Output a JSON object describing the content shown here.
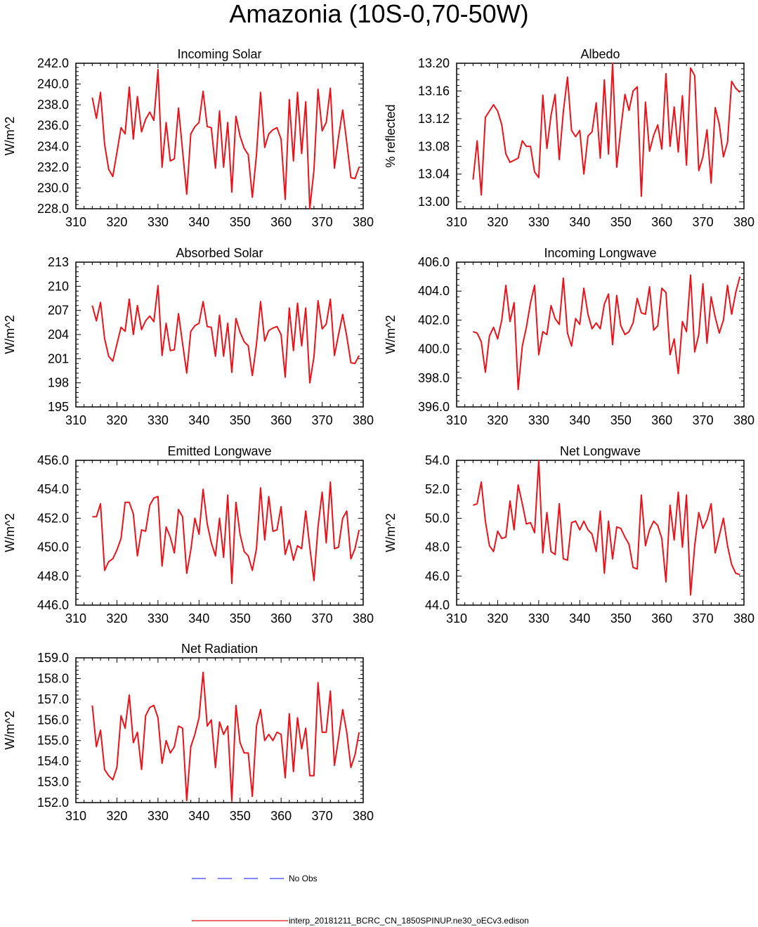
{
  "title": "Amazonia (10S-0,70-50W)",
  "legend": [
    {
      "label": "No Obs",
      "color": "#3f3fff",
      "dash": true
    },
    {
      "label": "interp_20181211_BCRC_CN_1850SPINUP.ne30_oECv3.edison",
      "color": "#e8131b",
      "dash": false
    }
  ],
  "line_color": "#e8131b",
  "chart_data": [
    {
      "type": "line",
      "title": "Incoming Solar",
      "ylabel": "W/m^2",
      "xlim": [
        310,
        380
      ],
      "ylim": [
        228,
        242
      ],
      "xticks": [
        "310",
        "320",
        "330",
        "340",
        "350",
        "360",
        "370",
        "380"
      ],
      "yticks": [
        "228.0",
        "230.0",
        "232.0",
        "234.0",
        "236.0",
        "238.0",
        "240.0",
        "242.0"
      ],
      "x": [
        314,
        315,
        316,
        317,
        318,
        319,
        320,
        321,
        322,
        323,
        324,
        325,
        326,
        327,
        328,
        329,
        330,
        331,
        332,
        333,
        334,
        335,
        336,
        337,
        338,
        339,
        340,
        341,
        342,
        343,
        344,
        345,
        346,
        347,
        348,
        349,
        350,
        351,
        352,
        353,
        354,
        355,
        356,
        357,
        358,
        359,
        360,
        361,
        362,
        363,
        364,
        365,
        366,
        367,
        368,
        369,
        370,
        371,
        372,
        373,
        374,
        375,
        376,
        377,
        378,
        379
      ],
      "y": [
        238.7,
        236.7,
        239.2,
        234.2,
        231.8,
        231.1,
        233.4,
        235.8,
        235.2,
        239.7,
        234.7,
        238.8,
        235.4,
        236.6,
        237.3,
        236.5,
        241.4,
        232.0,
        236.3,
        232.6,
        232.8,
        237.7,
        233.6,
        229.4,
        235.2,
        235.9,
        236.3,
        239.3,
        235.9,
        235.8,
        231.9,
        237.4,
        232.0,
        236.3,
        229.6,
        236.9,
        235.0,
        233.8,
        233.2,
        229.1,
        233.2,
        239.2,
        233.9,
        235.2,
        235.6,
        235.8,
        234.7,
        228.9,
        238.5,
        232.6,
        239.2,
        233.3,
        238.3,
        228.0,
        231.7,
        239.5,
        235.5,
        236.3,
        239.6,
        231.9,
        234.9,
        237.5,
        234.4,
        231.0,
        230.9,
        232.0
      ]
    },
    {
      "type": "line",
      "title": "Albedo",
      "ylabel": "% reflected",
      "xlim": [
        310,
        380
      ],
      "ylim": [
        12.99,
        13.2
      ],
      "xticks": [
        "310",
        "320",
        "330",
        "340",
        "350",
        "360",
        "370",
        "380"
      ],
      "yticks": [
        "13.00",
        "13.04",
        "13.08",
        "13.12",
        "13.16",
        "13.20"
      ],
      "x": [
        314,
        315,
        316,
        317,
        318,
        319,
        320,
        321,
        322,
        323,
        324,
        325,
        326,
        327,
        328,
        329,
        330,
        331,
        332,
        333,
        334,
        335,
        336,
        337,
        338,
        339,
        340,
        341,
        342,
        343,
        344,
        345,
        346,
        347,
        348,
        349,
        350,
        351,
        352,
        353,
        354,
        355,
        356,
        357,
        358,
        359,
        360,
        361,
        362,
        363,
        364,
        365,
        366,
        367,
        368,
        369,
        370,
        371,
        372,
        373,
        374,
        375,
        376,
        377,
        378,
        379
      ],
      "y": [
        13.032,
        13.088,
        13.01,
        13.122,
        13.131,
        13.14,
        13.131,
        13.111,
        13.069,
        13.057,
        13.06,
        13.063,
        13.088,
        13.08,
        13.08,
        13.043,
        13.035,
        13.154,
        13.077,
        13.125,
        13.155,
        13.061,
        13.13,
        13.18,
        13.103,
        13.094,
        13.103,
        13.04,
        13.095,
        13.101,
        13.143,
        13.063,
        13.176,
        13.069,
        13.2,
        13.05,
        13.105,
        13.155,
        13.132,
        13.16,
        13.166,
        13.008,
        13.144,
        13.073,
        13.096,
        13.111,
        13.076,
        13.185,
        13.08,
        13.137,
        13.072,
        13.153,
        13.053,
        13.193,
        13.182,
        13.045,
        13.065,
        13.104,
        13.027,
        13.136,
        13.112,
        13.065,
        13.086,
        13.174,
        13.164,
        13.158
      ]
    },
    {
      "type": "line",
      "title": "Absorbed Solar",
      "ylabel": "W/m^2",
      "xlim": [
        310,
        380
      ],
      "ylim": [
        195,
        213
      ],
      "xticks": [
        "310",
        "320",
        "330",
        "340",
        "350",
        "360",
        "370",
        "380"
      ],
      "yticks": [
        "195",
        "198",
        "201",
        "204",
        "207",
        "210",
        "213"
      ],
      "x": [
        314,
        315,
        316,
        317,
        318,
        319,
        320,
        321,
        322,
        323,
        324,
        325,
        326,
        327,
        328,
        329,
        330,
        331,
        332,
        333,
        334,
        335,
        336,
        337,
        338,
        339,
        340,
        341,
        342,
        343,
        344,
        345,
        346,
        347,
        348,
        349,
        350,
        351,
        352,
        353,
        354,
        355,
        356,
        357,
        358,
        359,
        360,
        361,
        362,
        363,
        364,
        365,
        366,
        367,
        368,
        369,
        370,
        371,
        372,
        373,
        374,
        375,
        376,
        377,
        378,
        379
      ],
      "y": [
        207.6,
        205.7,
        208.0,
        203.5,
        201.3,
        200.7,
        202.8,
        204.9,
        204.4,
        208.4,
        204.0,
        207.6,
        204.6,
        205.7,
        206.3,
        205.6,
        210.1,
        201.4,
        205.4,
        202.0,
        202.1,
        206.6,
        202.9,
        199.2,
        204.4,
        205.1,
        205.4,
        208.1,
        205.0,
        204.9,
        201.3,
        206.4,
        201.3,
        205.4,
        199.3,
        206.0,
        204.3,
        203.1,
        202.6,
        198.9,
        202.8,
        208.1,
        203.2,
        204.5,
        204.8,
        205.0,
        204.0,
        198.7,
        207.3,
        202.0,
        207.9,
        202.6,
        207.3,
        198.0,
        201.2,
        208.2,
        204.7,
        205.3,
        208.4,
        201.4,
        204.0,
        206.5,
        203.8,
        200.5,
        200.4,
        201.4
      ]
    },
    {
      "type": "line",
      "title": "Incoming Longwave",
      "ylabel": "W/m^2",
      "xlim": [
        310,
        380
      ],
      "ylim": [
        396,
        406
      ],
      "xticks": [
        "310",
        "320",
        "330",
        "340",
        "350",
        "360",
        "370",
        "380"
      ],
      "yticks": [
        "396.0",
        "398.0",
        "400.0",
        "402.0",
        "404.0",
        "406.0"
      ],
      "x": [
        314,
        315,
        316,
        317,
        318,
        319,
        320,
        321,
        322,
        323,
        324,
        325,
        326,
        327,
        328,
        329,
        330,
        331,
        332,
        333,
        334,
        335,
        336,
        337,
        338,
        339,
        340,
        341,
        342,
        343,
        344,
        345,
        346,
        347,
        348,
        349,
        350,
        351,
        352,
        353,
        354,
        355,
        356,
        357,
        358,
        359,
        360,
        361,
        362,
        363,
        364,
        365,
        366,
        367,
        368,
        369,
        370,
        371,
        372,
        373,
        374,
        375,
        376,
        377,
        378,
        379
      ],
      "y": [
        401.2,
        401.1,
        400.5,
        398.4,
        400.9,
        401.5,
        400.7,
        402.0,
        404.4,
        401.9,
        403.2,
        397.2,
        400.2,
        401.5,
        403.2,
        404.4,
        399.6,
        401.2,
        401.0,
        403.0,
        402.1,
        401.7,
        404.9,
        401.1,
        400.2,
        402.1,
        401.7,
        404.2,
        402.4,
        401.4,
        401.8,
        401.4,
        403.1,
        403.8,
        400.3,
        403.7,
        401.6,
        401.0,
        401.2,
        401.8,
        403.5,
        402.5,
        402.4,
        404.3,
        401.3,
        401.6,
        404.2,
        403.9,
        399.6,
        400.7,
        398.3,
        401.9,
        401.2,
        405.1,
        399.8,
        401.0,
        404.5,
        400.4,
        403.6,
        402.2,
        401.1,
        402.0,
        404.4,
        402.4,
        403.9,
        405.0
      ]
    },
    {
      "type": "line",
      "title": "Emitted Longwave",
      "ylabel": "W/m^2",
      "xlim": [
        310,
        380
      ],
      "ylim": [
        446,
        456
      ],
      "xticks": [
        "310",
        "320",
        "330",
        "340",
        "350",
        "360",
        "370",
        "380"
      ],
      "yticks": [
        "446.0",
        "448.0",
        "450.0",
        "452.0",
        "454.0",
        "456.0"
      ],
      "x": [
        314,
        315,
        316,
        317,
        318,
        319,
        320,
        321,
        322,
        323,
        324,
        325,
        326,
        327,
        328,
        329,
        330,
        331,
        332,
        333,
        334,
        335,
        336,
        337,
        338,
        339,
        340,
        341,
        342,
        343,
        344,
        345,
        346,
        347,
        348,
        349,
        350,
        351,
        352,
        353,
        354,
        355,
        356,
        357,
        358,
        359,
        360,
        361,
        362,
        363,
        364,
        365,
        366,
        367,
        368,
        369,
        370,
        371,
        372,
        373,
        374,
        375,
        376,
        377,
        378,
        379
      ],
      "y": [
        452.1,
        452.1,
        453.0,
        448.4,
        449.0,
        449.2,
        449.8,
        450.6,
        453.1,
        453.1,
        452.3,
        449.4,
        451.2,
        451.1,
        452.9,
        453.4,
        453.5,
        448.7,
        451.4,
        450.7,
        449.6,
        452.6,
        452.1,
        448.2,
        449.8,
        452.0,
        450.9,
        454.0,
        451.6,
        450.3,
        449.4,
        452.0,
        449.3,
        453.6,
        447.5,
        453.1,
        450.9,
        449.7,
        449.4,
        448.4,
        449.9,
        454.1,
        450.5,
        453.5,
        451.1,
        451.2,
        452.8,
        449.5,
        450.5,
        449.1,
        450.1,
        449.9,
        452.5,
        450.0,
        447.7,
        451.4,
        453.8,
        450.3,
        454.5,
        449.9,
        450.0,
        452.0,
        452.5,
        449.2,
        449.9,
        451.2
      ]
    },
    {
      "type": "line",
      "title": "Net Longwave",
      "ylabel": "W/m^2",
      "xlim": [
        310,
        380
      ],
      "ylim": [
        44,
        54
      ],
      "xticks": [
        "310",
        "320",
        "330",
        "340",
        "350",
        "360",
        "370",
        "380"
      ],
      "yticks": [
        "44.0",
        "46.0",
        "48.0",
        "50.0",
        "52.0",
        "54.0"
      ],
      "x": [
        314,
        315,
        316,
        317,
        318,
        319,
        320,
        321,
        322,
        323,
        324,
        325,
        326,
        327,
        328,
        329,
        330,
        331,
        332,
        333,
        334,
        335,
        336,
        337,
        338,
        339,
        340,
        341,
        342,
        343,
        344,
        345,
        346,
        347,
        348,
        349,
        350,
        351,
        352,
        353,
        354,
        355,
        356,
        357,
        358,
        359,
        360,
        361,
        362,
        363,
        364,
        365,
        366,
        367,
        368,
        369,
        370,
        371,
        372,
        373,
        374,
        375,
        376,
        377,
        378,
        379
      ],
      "y": [
        50.9,
        51.0,
        52.5,
        49.8,
        48.1,
        47.7,
        49.1,
        48.6,
        48.7,
        51.2,
        49.2,
        52.3,
        51.0,
        49.6,
        49.7,
        49.0,
        54.0,
        47.6,
        50.4,
        47.7,
        47.5,
        51.0,
        47.2,
        47.1,
        49.7,
        49.8,
        49.2,
        49.8,
        49.2,
        48.9,
        47.7,
        50.5,
        46.2,
        49.8,
        47.2,
        49.4,
        49.3,
        48.7,
        48.2,
        46.6,
        46.5,
        51.6,
        48.1,
        49.2,
        49.8,
        49.5,
        48.6,
        45.6,
        50.9,
        48.5,
        51.8,
        48.0,
        51.6,
        44.7,
        48.1,
        50.4,
        49.3,
        49.9,
        51.0,
        47.6,
        48.8,
        50.0,
        48.1,
        46.8,
        46.2,
        46.1
      ]
    },
    {
      "type": "line",
      "title": "Net Radiation",
      "ylabel": "W/m^2",
      "xlim": [
        310,
        380
      ],
      "ylim": [
        152,
        159
      ],
      "xticks": [
        "310",
        "320",
        "330",
        "340",
        "350",
        "360",
        "370",
        "380"
      ],
      "yticks": [
        "152.0",
        "153.0",
        "154.0",
        "155.0",
        "156.0",
        "157.0",
        "158.0",
        "159.0"
      ],
      "x": [
        314,
        315,
        316,
        317,
        318,
        319,
        320,
        321,
        322,
        323,
        324,
        325,
        326,
        327,
        328,
        329,
        330,
        331,
        332,
        333,
        334,
        335,
        336,
        337,
        338,
        339,
        340,
        341,
        342,
        343,
        344,
        345,
        346,
        347,
        348,
        349,
        350,
        351,
        352,
        353,
        354,
        355,
        356,
        357,
        358,
        359,
        360,
        361,
        362,
        363,
        364,
        365,
        366,
        367,
        368,
        369,
        370,
        371,
        372,
        373,
        374,
        375,
        376,
        377,
        378,
        379
      ],
      "y": [
        156.7,
        154.7,
        155.5,
        153.6,
        153.3,
        153.1,
        153.7,
        156.2,
        155.6,
        157.2,
        154.9,
        155.4,
        153.6,
        156.2,
        156.6,
        156.7,
        156.1,
        153.9,
        155.0,
        154.4,
        154.7,
        155.7,
        155.6,
        152.1,
        154.7,
        155.3,
        156.1,
        158.3,
        155.7,
        156.0,
        153.7,
        155.9,
        155.3,
        155.7,
        152.1,
        156.7,
        154.9,
        154.4,
        154.4,
        152.3,
        155.7,
        156.5,
        155.0,
        155.3,
        155.0,
        155.4,
        155.3,
        153.2,
        156.3,
        153.5,
        156.1,
        154.6,
        155.6,
        153.3,
        153.3,
        157.8,
        155.4,
        155.4,
        157.4,
        153.8,
        155.1,
        156.5,
        155.4,
        153.7,
        154.3,
        155.4
      ]
    }
  ]
}
